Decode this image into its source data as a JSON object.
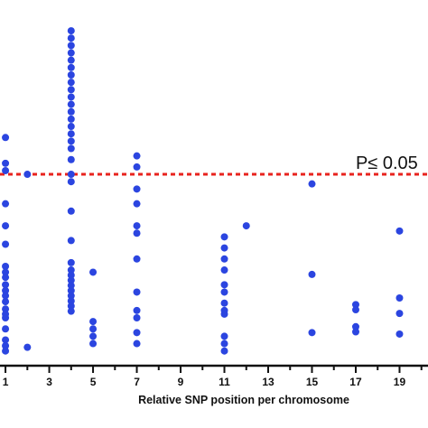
{
  "chart_data": {
    "type": "scatter",
    "title": "",
    "xlabel": "Relative SNP position per chromosome",
    "ylabel": "",
    "xlim": [
      0.75,
      20.3
    ],
    "ylim": [
      0,
      46
    ],
    "x_ticks": [
      1,
      3,
      5,
      7,
      9,
      11,
      13,
      15,
      17,
      19
    ],
    "grid": false,
    "threshold": {
      "y": 26,
      "label": "P≤ 0.05",
      "color": "#e8231e",
      "style": "dashed"
    },
    "marker_color": "#2b45e0",
    "series": [
      {
        "points": [
          [
            1,
            31
          ],
          [
            1,
            27.5
          ],
          [
            1,
            26.5
          ],
          [
            1,
            22
          ],
          [
            1,
            19
          ],
          [
            1,
            16.5
          ],
          [
            1,
            13.5
          ],
          [
            1,
            12.7
          ],
          [
            1,
            12
          ],
          [
            1,
            11
          ],
          [
            1,
            10.2
          ],
          [
            1,
            9.5
          ],
          [
            1,
            8.7
          ],
          [
            1,
            7.7
          ],
          [
            1,
            7
          ],
          [
            1,
            6.5
          ],
          [
            1,
            5
          ],
          [
            1,
            3.5
          ],
          [
            1,
            2.7
          ],
          [
            1,
            2
          ],
          [
            2,
            26
          ],
          [
            2,
            2.5
          ],
          [
            4,
            45.5
          ],
          [
            4,
            44.5
          ],
          [
            4,
            43.5
          ],
          [
            4,
            42.5
          ],
          [
            4,
            41.5
          ],
          [
            4,
            40.5
          ],
          [
            4,
            39.5
          ],
          [
            4,
            38.5
          ],
          [
            4,
            37.5
          ],
          [
            4,
            36.5
          ],
          [
            4,
            35.5
          ],
          [
            4,
            34.5
          ],
          [
            4,
            33.5
          ],
          [
            4,
            32.5
          ],
          [
            4,
            31.5
          ],
          [
            4,
            30.5
          ],
          [
            4,
            29.5
          ],
          [
            4,
            28
          ],
          [
            4,
            26
          ],
          [
            4,
            25
          ],
          [
            4,
            21
          ],
          [
            4,
            17
          ],
          [
            4,
            14
          ],
          [
            4,
            13
          ],
          [
            4,
            12.3
          ],
          [
            4,
            11.6
          ],
          [
            4,
            10.9
          ],
          [
            4,
            10.2
          ],
          [
            4,
            9.5
          ],
          [
            4,
            8.8
          ],
          [
            4,
            8.1
          ],
          [
            4,
            7.4
          ],
          [
            5,
            12.7
          ],
          [
            5,
            6
          ],
          [
            5,
            5
          ],
          [
            5,
            4
          ],
          [
            5,
            3
          ],
          [
            7,
            28.5
          ],
          [
            7,
            27
          ],
          [
            7,
            24
          ],
          [
            7,
            22
          ],
          [
            7,
            19
          ],
          [
            7,
            18
          ],
          [
            7,
            14.5
          ],
          [
            7,
            10
          ],
          [
            7,
            7.5
          ],
          [
            7,
            6.5
          ],
          [
            7,
            4.5
          ],
          [
            7,
            3
          ],
          [
            11,
            17.5
          ],
          [
            11,
            16
          ],
          [
            11,
            14.5
          ],
          [
            11,
            13
          ],
          [
            11,
            11
          ],
          [
            11,
            10
          ],
          [
            11,
            8.5
          ],
          [
            11,
            7.5
          ],
          [
            11,
            7
          ],
          [
            11,
            4
          ],
          [
            11,
            3
          ],
          [
            11,
            2
          ],
          [
            12,
            19
          ],
          [
            15,
            24.7
          ],
          [
            15,
            12.4
          ],
          [
            15,
            4.5
          ],
          [
            17,
            8.3
          ],
          [
            17,
            7.6
          ],
          [
            17,
            5.3
          ],
          [
            17,
            4.6
          ],
          [
            19,
            18.3
          ],
          [
            19,
            9.2
          ],
          [
            19,
            7.1
          ],
          [
            19,
            4.3
          ]
        ]
      }
    ]
  }
}
